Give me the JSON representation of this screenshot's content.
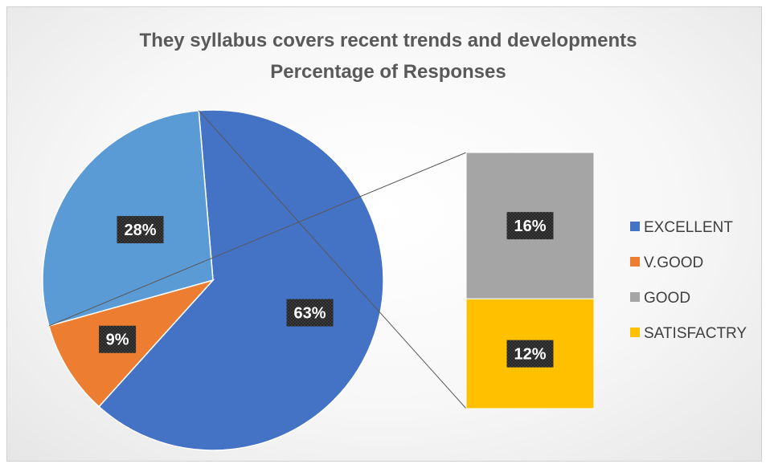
{
  "chart_data": {
    "type": "pie",
    "subtype": "bar-of-pie",
    "title": "They syllabus covers recent trends and developments",
    "subtitle": "Percentage of Responses",
    "categories": [
      "EXCELLENT",
      "V.GOOD",
      "GOOD",
      "SATISFACTRY"
    ],
    "values": [
      63,
      9,
      16,
      12
    ],
    "labels": [
      "63%",
      "9%",
      "16%",
      "12%"
    ],
    "other_label": "28%",
    "other_value": 28,
    "secondary_categories": [
      "GOOD",
      "SATISFACTRY"
    ],
    "colors": [
      "#4472C4",
      "#ED7D31",
      "#A5A5A5",
      "#FFC000"
    ],
    "other_color": "#5B9BD5",
    "legend_position": "right"
  }
}
